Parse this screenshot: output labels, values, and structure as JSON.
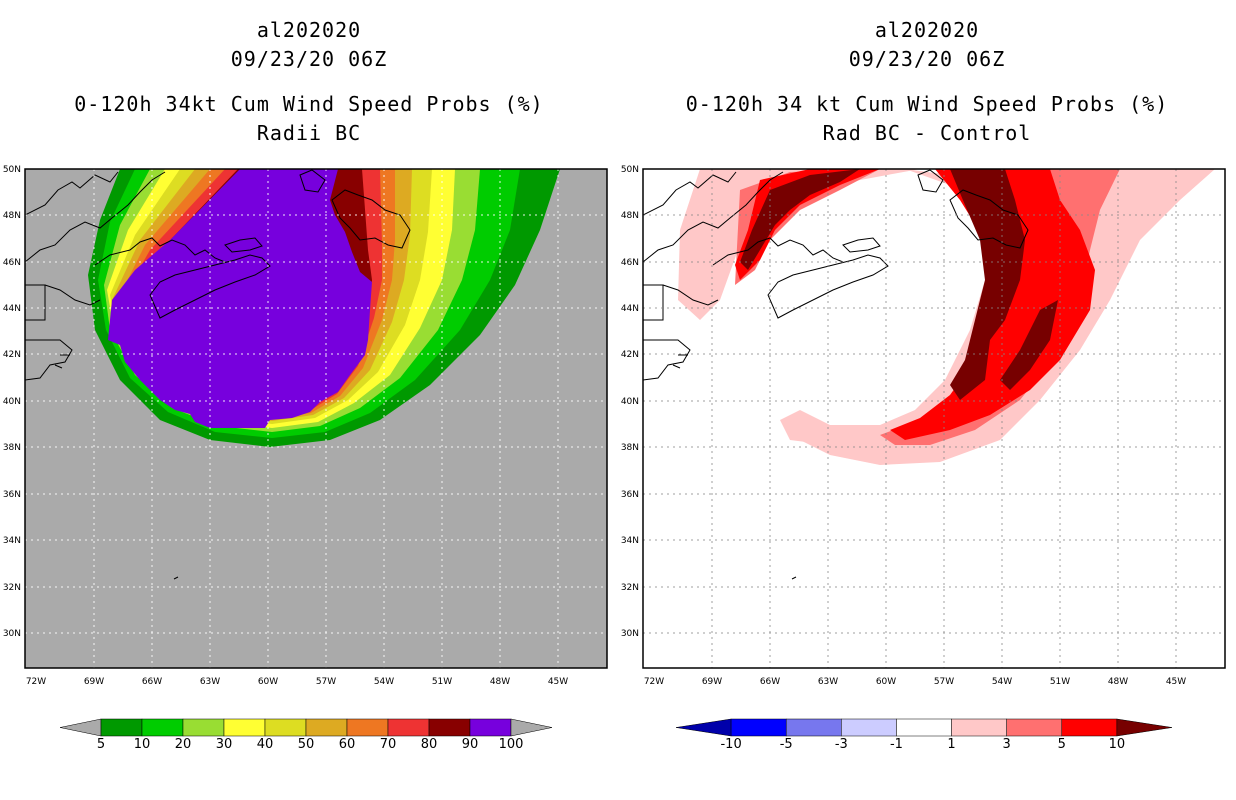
{
  "left_panel": {
    "storm_id": "al202020",
    "datetime": "09/23/20 06Z",
    "product": "0-120h 34kt Cum Wind Speed Probs (%)",
    "subtitle": "Radii BC",
    "colorbar": {
      "labels": [
        "5",
        "10",
        "20",
        "30",
        "40",
        "50",
        "60",
        "70",
        "80",
        "90",
        "100"
      ],
      "colors": [
        "#aaaaaa",
        "#009900",
        "#00cc00",
        "#99dd33",
        "#ffff33",
        "#dddd22",
        "#ddaa22",
        "#ee7722",
        "#ee3333",
        "#880000",
        "#7700dd",
        "#aaaaaa"
      ]
    }
  },
  "right_panel": {
    "storm_id": "al202020",
    "datetime": "09/23/20 06Z",
    "product": "0-120h 34 kt Cum Wind Speed Probs (%)",
    "subtitle": "Rad BC - Control",
    "colorbar": {
      "labels": [
        "-10",
        "-5",
        "-3",
        "-1",
        "1",
        "3",
        "5",
        "10"
      ],
      "colors": [
        "#0000aa",
        "#0000ff",
        "#7777ee",
        "#ccccff",
        "#ffffff",
        "#ffc8c8",
        "#ff7070",
        "#ff0000",
        "#770000"
      ]
    }
  },
  "axes": {
    "lat_labels": [
      "50N",
      "48N",
      "46N",
      "44N",
      "42N",
      "40N",
      "38N",
      "36N",
      "34N",
      "32N",
      "30N"
    ],
    "lon_labels": [
      "72W",
      "69W",
      "66W",
      "63W",
      "60W",
      "57W",
      "54W",
      "51W",
      "48W",
      "45W"
    ],
    "lat_range": [
      28.5,
      50
    ],
    "lon_range": [
      -72.5,
      -42.5
    ]
  }
}
